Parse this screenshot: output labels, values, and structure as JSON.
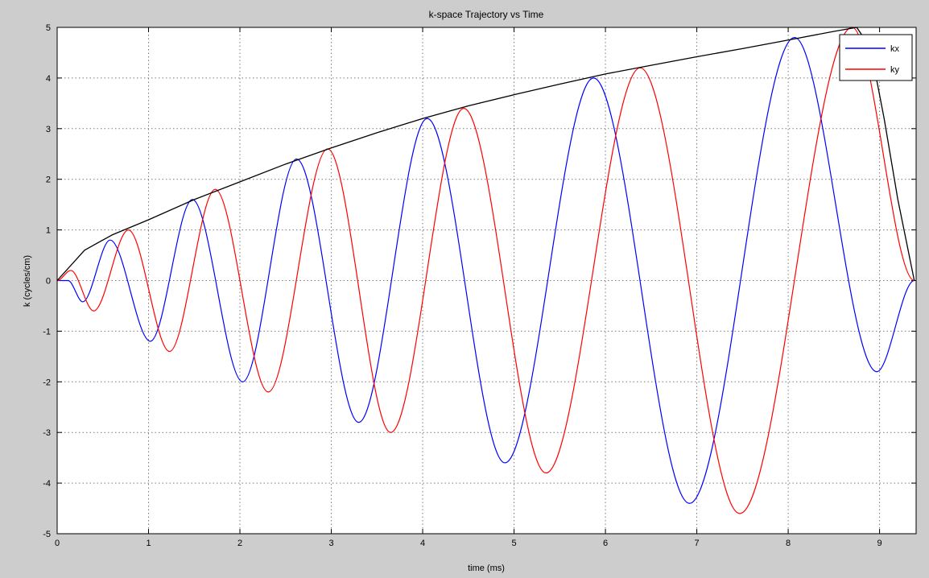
{
  "chart_data": {
    "type": "line",
    "title": "k-space Trajectory vs Time",
    "xlabel": "time (ms)",
    "ylabel": "k (cycles/cm)",
    "xlim": [
      0,
      9.4
    ],
    "ylim": [
      -5,
      5
    ],
    "xticks": [
      0,
      1,
      2,
      3,
      4,
      5,
      6,
      7,
      8,
      9
    ],
    "yticks": [
      -5,
      -4,
      -3,
      -2,
      -1,
      0,
      1,
      2,
      3,
      4,
      5
    ],
    "grid": true,
    "legend_position": "top-right",
    "series": [
      {
        "name": "kx",
        "color": "#0000ff",
        "x": [
          0,
          0.12,
          0.28,
          0.58,
          1.02,
          1.48,
          2.03,
          2.62,
          3.3,
          4.05,
          4.9,
          5.87,
          6.92,
          8.07,
          8.97,
          9.38
        ],
        "y": [
          0,
          0,
          -0.42,
          0.8,
          -1.2,
          1.6,
          -2.0,
          2.4,
          -2.8,
          3.2,
          -3.6,
          4.0,
          -4.4,
          4.8,
          -1.8,
          0
        ]
      },
      {
        "name": "ky",
        "color": "#ff0000",
        "x": [
          0,
          0.15,
          0.4,
          0.78,
          1.23,
          1.73,
          2.31,
          2.96,
          3.65,
          4.45,
          5.35,
          6.38,
          7.47,
          8.7,
          9.38
        ],
        "y": [
          0,
          0.2,
          -0.6,
          1.0,
          -1.4,
          1.8,
          -2.2,
          2.6,
          -3.0,
          3.4,
          -3.8,
          4.2,
          -4.6,
          5.0,
          0
        ]
      },
      {
        "color": "#000000",
        "x": [
          0,
          0.3,
          0.6,
          1.0,
          1.5,
          2.0,
          2.5,
          3.0,
          3.5,
          4.0,
          4.5,
          5.0,
          5.5,
          6.0,
          6.5,
          7.0,
          7.5,
          8.0,
          8.5,
          8.75,
          8.9,
          9.05,
          9.2,
          9.38
        ],
        "y": [
          0,
          0.6,
          0.9,
          1.2,
          1.6,
          1.95,
          2.3,
          2.62,
          2.92,
          3.2,
          3.45,
          3.67,
          3.88,
          4.08,
          4.25,
          4.42,
          4.58,
          4.75,
          4.92,
          5.0,
          4.6,
          3.2,
          1.6,
          0
        ]
      }
    ]
  }
}
